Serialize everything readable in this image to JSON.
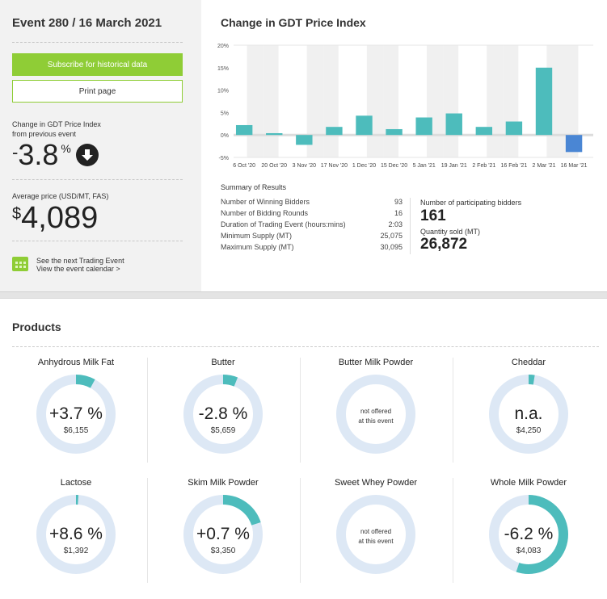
{
  "event": {
    "title": "Event 280 / 16 March 2021",
    "subscribe_label": "Subscribe for historical data",
    "print_label": "Print page",
    "change_label_1": "Change in GDT Price Index",
    "change_label_2": "from previous event",
    "change_sign": "-",
    "change_value": "3.8",
    "change_unit": "%",
    "change_direction_icon": "arrow-down-circle-icon",
    "avg_label": "Average price (USD/MT, FAS)",
    "avg_currency": "$",
    "avg_value": "4,089",
    "calendar_line1": "See the next Trading Event",
    "calendar_line2": "View the event calendar >"
  },
  "colors": {
    "accent_green": "#8fcd36",
    "bar_teal": "#4dbcbc",
    "bar_current": "#4a86d4",
    "ring_bg": "#dde8f5"
  },
  "chart_data": {
    "type": "bar",
    "title": "Change in GDT Price Index",
    "categories": [
      "6 Oct '20",
      "20 Oct '20",
      "3 Nov '20",
      "17 Nov '20",
      "1 Dec '20",
      "15 Dec '20",
      "5 Jan '21",
      "19 Jan '21",
      "2 Feb '21",
      "16 Feb '21",
      "2 Mar '21",
      "16 Mar '21"
    ],
    "values": [
      2.2,
      0.4,
      -2.2,
      1.8,
      4.3,
      1.3,
      3.9,
      4.8,
      1.8,
      3.0,
      15.0,
      -3.8
    ],
    "ylim": [
      -5,
      20
    ],
    "yticks": [
      "20%",
      "15%",
      "10%",
      "5%",
      "0%",
      "-5%"
    ],
    "ytick_values": [
      20,
      15,
      10,
      5,
      0,
      -5
    ],
    "xlabel": "",
    "ylabel": ""
  },
  "summary": {
    "title": "Summary of Results",
    "rows": [
      {
        "label": "Number of Winning Bidders",
        "value": "93"
      },
      {
        "label": "Number of Bidding Rounds",
        "value": "16"
      },
      {
        "label": "Duration of Trading Event (hours:mins)",
        "value": "2:03"
      },
      {
        "label": "Minimum Supply (MT)",
        "value": "25,075"
      },
      {
        "label": "Maximum Supply (MT)",
        "value": "30,095"
      }
    ],
    "participating_label": "Number of participating bidders",
    "participating_value": "161",
    "quantity_label": "Quantity sold (MT)",
    "quantity_value": "26,872"
  },
  "products": {
    "title": "Products",
    "items": [
      {
        "name": "Anhydrous Milk Fat",
        "change": "+3.7 %",
        "price": "$6,155",
        "fill": 0.08
      },
      {
        "name": "Butter",
        "change": "-2.8 %",
        "price": "$5,659",
        "fill": 0.06
      },
      {
        "name": "Butter Milk Powder",
        "note1": "not offered",
        "note2": "at this event",
        "fill": 0
      },
      {
        "name": "Cheddar",
        "change": "n.a.",
        "price": "$4,250",
        "fill": 0.025
      },
      {
        "name": "Lactose",
        "change": "+8.6 %",
        "price": "$1,392",
        "fill": 0.01
      },
      {
        "name": "Skim Milk Powder",
        "change": "+0.7 %",
        "price": "$3,350",
        "fill": 0.2
      },
      {
        "name": "Sweet Whey Powder",
        "note1": "not offered",
        "note2": "at this event",
        "fill": 0
      },
      {
        "name": "Whole Milk Powder",
        "change": "-6.2 %",
        "price": "$4,083",
        "fill": 0.55
      }
    ]
  }
}
